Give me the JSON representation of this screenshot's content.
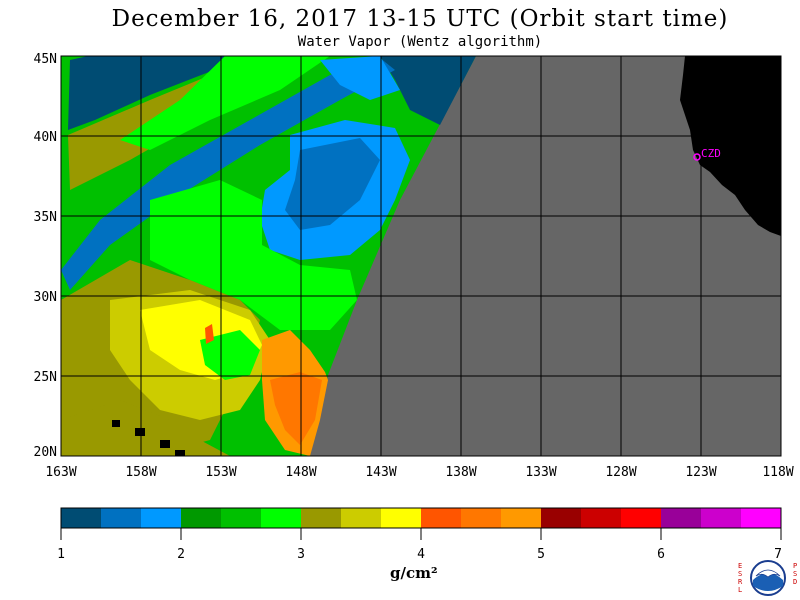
{
  "title": "December 16, 2017  13-15 UTC  (Orbit start time)",
  "subtitle": "Water Vapor (Wentz algorithm)",
  "map": {
    "lat_labels": [
      "45N",
      "40N",
      "35N",
      "30N",
      "25N",
      "20N"
    ],
    "lon_labels": [
      "163W",
      "158W",
      "153W",
      "148W",
      "143W",
      "138W",
      "133W",
      "128W",
      "123W",
      "118W"
    ],
    "station_label": "CZD",
    "colors": {
      "no_data": "#666666",
      "land": "#000000",
      "station": "#ff00ff"
    }
  },
  "colorbar": {
    "tick_labels": [
      "1",
      "2",
      "3",
      "4",
      "5",
      "6",
      "7"
    ],
    "unit_label": "g/cm²",
    "colors": [
      "#004c73",
      "#0071c1",
      "#0099ff",
      "#009900",
      "#00c000",
      "#00ff00",
      "#999900",
      "#cccc00",
      "#ffff00",
      "#ff5500",
      "#ff7700",
      "#ff9900",
      "#990000",
      "#cc0000",
      "#ff0000",
      "#990099",
      "#cc00cc",
      "#ff00ff"
    ]
  },
  "logo": {
    "left_letters": "ESRL",
    "right_letters": "PSD",
    "seal_text": "NOAA"
  }
}
